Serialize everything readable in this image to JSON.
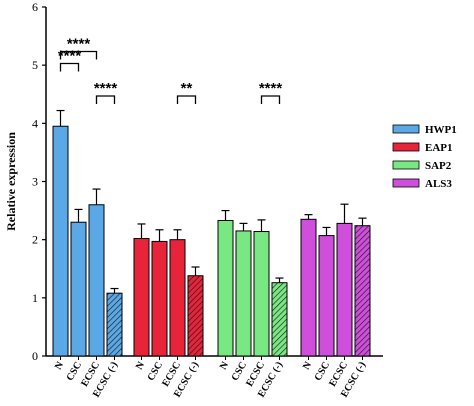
{
  "chart_data": {
    "type": "bar",
    "ylabel": "Relative expression",
    "ylim": [
      0,
      6
    ],
    "yticks": [
      0,
      1,
      2,
      3,
      4,
      5,
      6
    ],
    "categories": [
      "N",
      "CSC",
      "ECSC",
      "ECSC (-)"
    ],
    "series": [
      {
        "name": "HWP1",
        "color": "#5aa9e6",
        "values": [
          3.95,
          2.3,
          2.6,
          1.08
        ],
        "errors": [
          0.27,
          0.22,
          0.27,
          0.08
        ]
      },
      {
        "name": "EAP1",
        "color": "#e8243a",
        "values": [
          2.02,
          1.97,
          2.0,
          1.38
        ],
        "errors": [
          0.25,
          0.2,
          0.17,
          0.15
        ]
      },
      {
        "name": "SAP2",
        "color": "#7ae882",
        "values": [
          2.33,
          2.15,
          2.14,
          1.26
        ],
        "errors": [
          0.17,
          0.13,
          0.2,
          0.08
        ]
      },
      {
        "name": "ALS3",
        "color": "#cf4fdc",
        "values": [
          2.35,
          2.07,
          2.28,
          2.24
        ],
        "errors": [
          0.08,
          0.14,
          0.33,
          0.13
        ]
      }
    ],
    "hatched_category_index": 3,
    "annotations": [
      {
        "group": 0,
        "from": 0,
        "to": 1,
        "label": "****"
      },
      {
        "group": 0,
        "from": 0,
        "to": 2,
        "label": "****"
      },
      {
        "group": 0,
        "from": 2,
        "to": 3,
        "label": "****"
      },
      {
        "group": 1,
        "from": 2,
        "to": 3,
        "label": "**"
      },
      {
        "group": 2,
        "from": 2,
        "to": 3,
        "label": "****"
      }
    ],
    "legend": {
      "placement": "right"
    },
    "grid": false
  }
}
